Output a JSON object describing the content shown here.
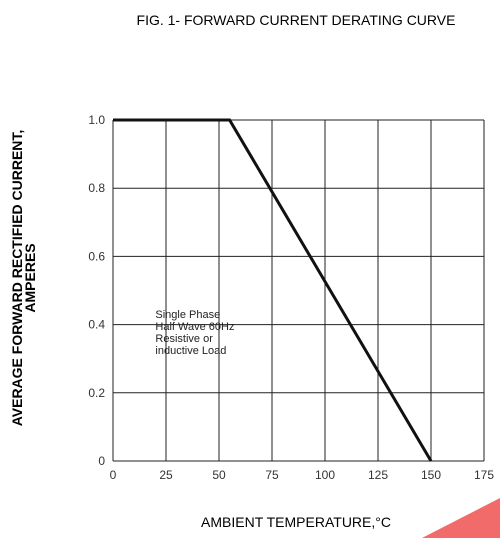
{
  "chart_data": {
    "type": "line",
    "title": "FIG. 1- FORWARD CURRENT DERATING CURVE",
    "xlabel": "AMBIENT TEMPERATURE,°C",
    "ylabel_lines": [
      "AVERAGE FORWARD RECTIFIED CURRENT,",
      "AMPERES"
    ],
    "xlim": [
      0,
      175
    ],
    "ylim": [
      0,
      1.0
    ],
    "x_ticks": [
      0,
      25,
      50,
      75,
      100,
      125,
      150,
      175
    ],
    "y_ticks": [
      0,
      0.2,
      0.4,
      0.6,
      0.8,
      1.0
    ],
    "x_tick_labels": [
      "0",
      "25",
      "50",
      "75",
      "100",
      "125",
      "150",
      "175"
    ],
    "y_tick_labels": [
      "0",
      "0.2",
      "0.4",
      "0.6",
      "0.8",
      "1.0"
    ],
    "grid": true,
    "series": [
      {
        "x": [
          0,
          55,
          150
        ],
        "y": [
          1.0,
          1.0,
          0.0
        ]
      }
    ],
    "annotation_lines": [
      "Single Phase",
      "Half Wave 60Hz",
      "Resistive or",
      "inductive Load"
    ],
    "annotation_anchor": [
      20,
      0.42
    ]
  },
  "colors": {
    "line": "#111111",
    "grid": "#222222",
    "corner": "#f26b6b"
  }
}
